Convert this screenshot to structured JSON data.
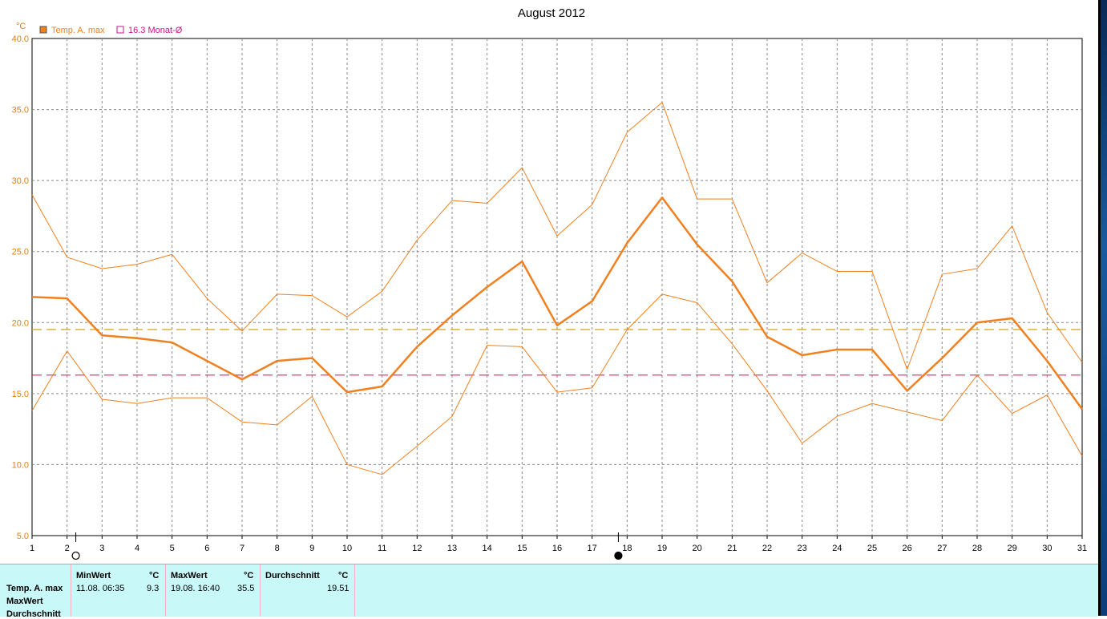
{
  "chart_data": {
    "type": "line",
    "title": "August 2012",
    "ylabel": "°C",
    "ylim": [
      5.0,
      40.0
    ],
    "yticks": [
      "5.0",
      "10.0",
      "15.0",
      "20.0",
      "25.0",
      "30.0",
      "35.0",
      "40.0"
    ],
    "x": [
      1,
      2,
      3,
      4,
      5,
      6,
      7,
      8,
      9,
      10,
      11,
      12,
      13,
      14,
      15,
      16,
      17,
      18,
      19,
      20,
      21,
      22,
      23,
      24,
      25,
      26,
      27,
      28,
      29,
      30,
      31
    ],
    "grid": true,
    "legend_position": "top-left",
    "legend": [
      {
        "label": "Temp. A. max",
        "color": "#f08020",
        "filled": true
      },
      {
        "label": "16.3 Monat-Ø",
        "color": "#cc1188",
        "filled": false
      }
    ],
    "series": [
      {
        "name": "Temp. A. max",
        "role": "mean",
        "color": "#f08020",
        "width": 2.5,
        "values": [
          21.8,
          21.7,
          19.1,
          18.9,
          18.6,
          17.3,
          16.0,
          17.3,
          17.5,
          15.1,
          15.5,
          18.3,
          20.5,
          22.5,
          24.3,
          19.8,
          21.5,
          25.6,
          28.8,
          25.5,
          22.9,
          19.0,
          17.7,
          18.1,
          18.1,
          15.2,
          17.5,
          20.0,
          20.3,
          17.3,
          13.9
        ]
      },
      {
        "role": "upper",
        "color": "#f08020",
        "width": 1,
        "values": [
          29.0,
          24.6,
          23.8,
          24.1,
          24.8,
          21.7,
          19.4,
          22.0,
          21.9,
          20.4,
          22.2,
          25.8,
          28.6,
          28.4,
          30.9,
          26.1,
          28.3,
          33.4,
          35.5,
          28.7,
          28.7,
          22.8,
          24.9,
          23.6,
          23.6,
          16.7,
          23.4,
          23.8,
          26.8,
          20.7,
          17.2
        ]
      },
      {
        "role": "lower",
        "color": "#f08020",
        "width": 1,
        "values": [
          13.8,
          18.0,
          14.6,
          14.3,
          14.7,
          14.7,
          13.0,
          12.8,
          14.8,
          10.0,
          9.3,
          11.3,
          13.4,
          18.4,
          18.3,
          15.1,
          15.4,
          19.5,
          22.0,
          21.4,
          18.5,
          15.2,
          11.5,
          13.4,
          14.3,
          13.7,
          13.1,
          16.3,
          13.6,
          14.9,
          10.6
        ]
      }
    ],
    "reference_lines": [
      {
        "y": 19.51,
        "color": "#d8a020"
      },
      {
        "y": 16.3,
        "color": "#dd2266"
      }
    ],
    "markers": [
      {
        "x": 2.25,
        "symbol": "open-circle"
      },
      {
        "x": 17.75,
        "symbol": "filled-circle"
      }
    ]
  },
  "stats": {
    "row_labels": [
      "Temp. A. max",
      "MaxWert",
      "Durchschnitt"
    ],
    "min": {
      "header": "MinWert",
      "unit": "°C",
      "date": "11.08.  06:35",
      "value": "9.3"
    },
    "max": {
      "header": "MaxWert",
      "unit": "°C",
      "date": "19.08.  16:40",
      "value": "35.5"
    },
    "avg": {
      "header": "Durchschnitt",
      "unit": "°C",
      "value": "19.51"
    }
  }
}
